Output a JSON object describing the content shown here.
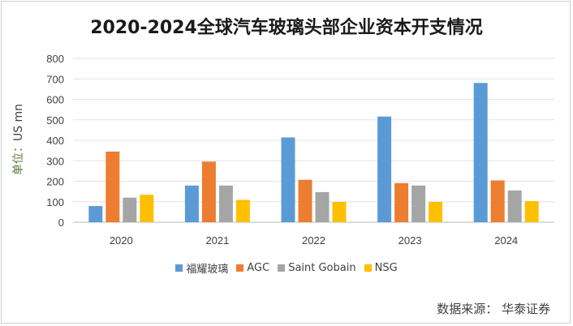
{
  "chart_data": {
    "type": "bar",
    "title": "2020-2024全球汽车玻璃头部企业资本开支情况",
    "ylabel_cn": "单位：",
    "ylabel_unit": "US mn",
    "categories": [
      "2020",
      "2021",
      "2022",
      "2023",
      "2024"
    ],
    "series": [
      {
        "name": "福耀玻璃",
        "color": "#5b9bd5",
        "values": [
          79,
          179,
          414,
          516,
          680
        ]
      },
      {
        "name": "AGC",
        "color": "#ed7d31",
        "values": [
          345,
          296,
          207,
          191,
          204
        ]
      },
      {
        "name": "Saint Gobain",
        "color": "#a5a5a5",
        "values": [
          120,
          179,
          147,
          179,
          155
        ]
      },
      {
        "name": "NSG",
        "color": "#ffc000",
        "values": [
          134,
          109,
          99,
          99,
          103
        ]
      }
    ],
    "ylim": [
      0,
      800
    ],
    "yticks": [
      "0",
      "100",
      "200",
      "300",
      "400",
      "500",
      "600",
      "700",
      "800"
    ],
    "grid": true,
    "legend": "bottom",
    "source": "数据来源：  华泰证券"
  }
}
